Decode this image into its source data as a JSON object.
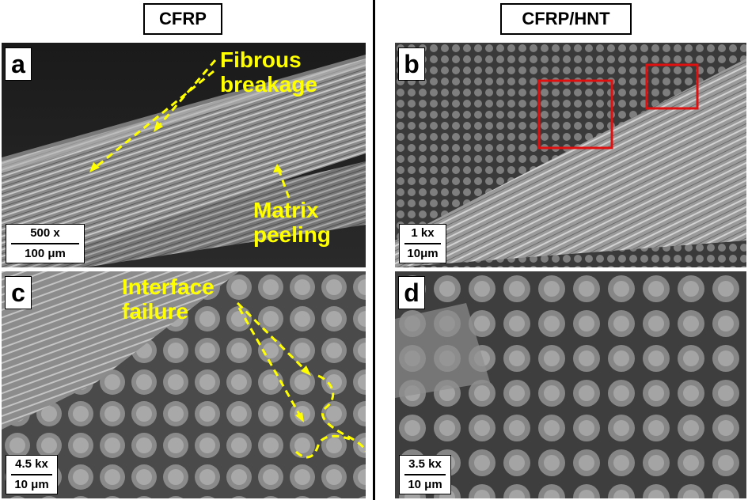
{
  "columns": {
    "left_title": "CFRP",
    "right_title": "CFRP/HNT"
  },
  "panels": {
    "a": {
      "letter": "a",
      "scale_top": "500 x",
      "scale_bottom": "100 μm",
      "anno1_line1": "Fibrous",
      "anno1_line2": "breakage",
      "anno2_line1": "Matrix",
      "anno2_line2": "peeling"
    },
    "b": {
      "letter": "b",
      "scale_top": "1 kx",
      "scale_bottom": "10μm"
    },
    "c": {
      "letter": "c",
      "scale_top": "4.5 kx",
      "scale_bottom": "10 μm",
      "anno1_line1": "Interface",
      "anno1_line2": "failure"
    },
    "d": {
      "letter": "d",
      "scale_top": "3.5 kx",
      "scale_bottom": "10 μm"
    }
  },
  "colors": {
    "annotation": "#ffff00",
    "highlight_box": "#e01010"
  }
}
